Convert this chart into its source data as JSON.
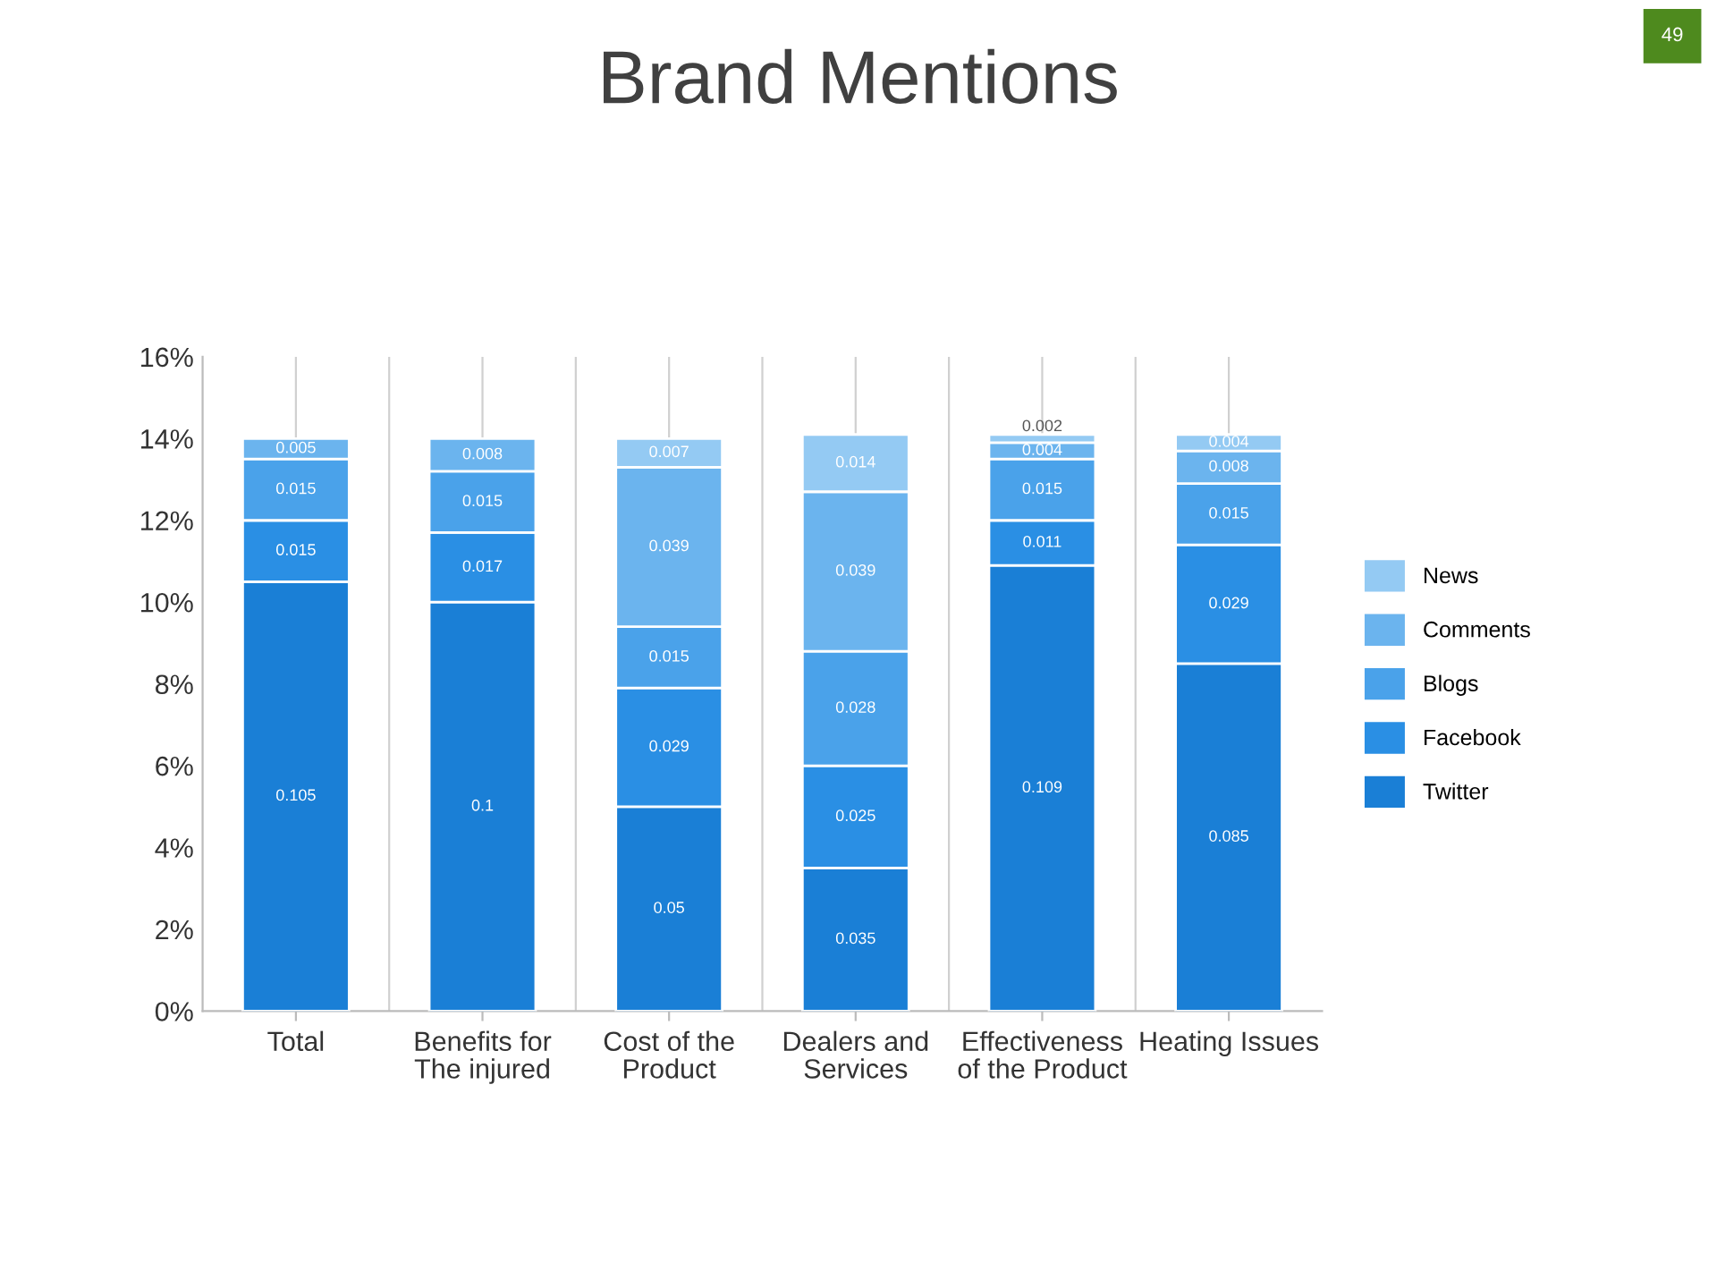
{
  "chart_data": {
    "type": "bar",
    "title": "Brand Mentions",
    "stacked": true,
    "categories": [
      "Total",
      "Benefits for The injured",
      "Cost of the Product",
      "Dealers and Services",
      "Effectiveness of the Product",
      "Heating Issues"
    ],
    "series": [
      {
        "name": "Twitter",
        "color": "#1a7fd6",
        "values": [
          0.105,
          0.1,
          0.05,
          0.035,
          0.109,
          0.085
        ]
      },
      {
        "name": "Facebook",
        "color": "#2a8fe4",
        "values": [
          0.015,
          0.017,
          0.029,
          0.025,
          0.011,
          0.029
        ]
      },
      {
        "name": "Blogs",
        "color": "#4aa2ea",
        "values": [
          0.015,
          0.015,
          0.015,
          0.028,
          0.015,
          0.015
        ]
      },
      {
        "name": "Comments",
        "color": "#6bb4ee",
        "values": [
          0.005,
          0.008,
          0.039,
          0.039,
          0.004,
          0.008
        ]
      },
      {
        "name": "News",
        "color": "#94caf3",
        "values": [
          null,
          null,
          0.007,
          0.014,
          0.002,
          0.004
        ]
      }
    ],
    "ylim": [
      0,
      0.16
    ],
    "yticks": [
      {
        "value": 0,
        "label": "0%"
      },
      {
        "value": 0.02,
        "label": "2%"
      },
      {
        "value": 0.04,
        "label": "4%"
      },
      {
        "value": 0.06,
        "label": "6%"
      },
      {
        "value": 0.08,
        "label": "8%"
      },
      {
        "value": 0.1,
        "label": "10%"
      },
      {
        "value": 0.12,
        "label": "12%"
      },
      {
        "value": 0.14,
        "label": "14%"
      },
      {
        "value": 0.16,
        "label": "16%"
      }
    ],
    "grid": "x",
    "legend": "right",
    "data_labels": true,
    "annotations": [
      "49"
    ]
  }
}
